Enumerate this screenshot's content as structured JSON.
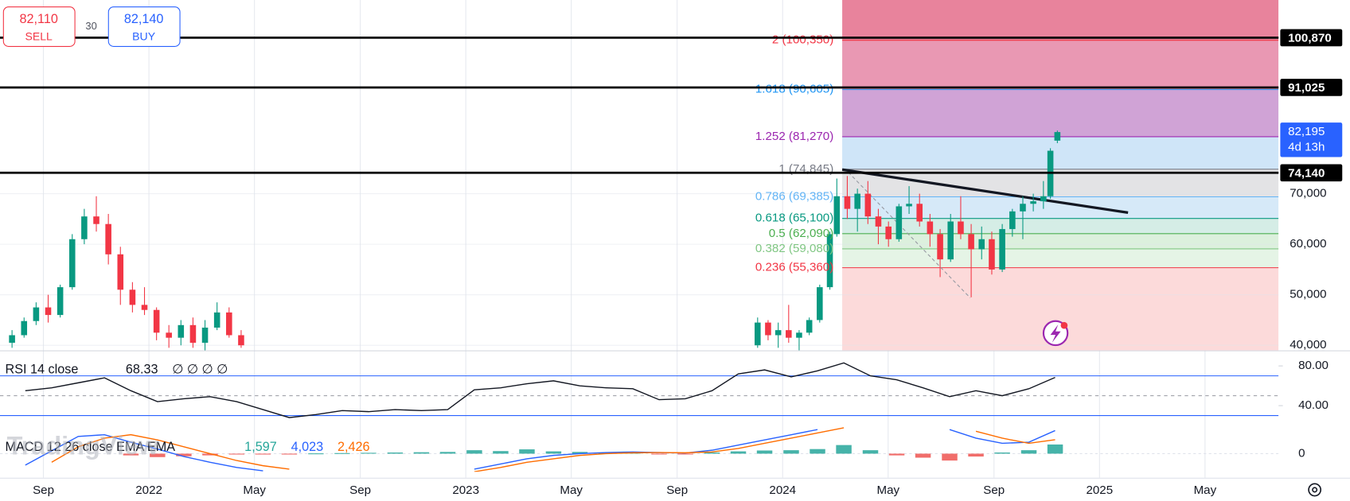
{
  "trade_panel": {
    "sell_price": "82,110",
    "sell_label": "SELL",
    "spread": "30",
    "buy_price": "82,140",
    "buy_label": "BUY"
  },
  "watermark": "TradingView",
  "chart_data": [
    {
      "type": "candlestick",
      "x": [
        2021.568,
        2021.606,
        2021.644,
        2021.682,
        2021.72,
        2021.758,
        2021.796,
        2021.834,
        2021.872,
        2021.91,
        2021.948,
        2021.986,
        2022.024,
        2022.063,
        2022.101,
        2022.139,
        2022.177,
        2022.215,
        2022.253,
        2022.291,
        2023.921,
        2023.954,
        2023.986,
        2024.019,
        2024.052,
        2024.084,
        2024.117,
        2024.149,
        2024.171,
        2024.204,
        2024.236,
        2024.269,
        2024.302,
        2024.334,
        2024.367,
        2024.399,
        2024.432,
        2024.465,
        2024.497,
        2024.53,
        2024.562,
        2024.595,
        2024.628,
        2024.66,
        2024.693,
        2024.725,
        2024.758,
        2024.791,
        2024.823,
        2024.845,
        2024.867
      ],
      "open": [
        40500,
        42000,
        44800,
        47500,
        46000,
        51500,
        61000,
        65500,
        64000,
        58000,
        51000,
        48000,
        47000,
        42500,
        41500,
        44000,
        40500,
        43500,
        46500,
        42000,
        40000,
        44500,
        42000,
        43000,
        41500,
        42500,
        45000,
        51500,
        62000,
        69500,
        67000,
        70000,
        65500,
        63500,
        61000,
        67500,
        68000,
        64500,
        62000,
        57000,
        64500,
        62000,
        59000,
        61000,
        55000,
        63000,
        66500,
        68000,
        68500,
        69500,
        80500
      ],
      "high": [
        43000,
        45500,
        48500,
        50000,
        52000,
        62000,
        67000,
        69500,
        66000,
        59500,
        52500,
        51500,
        47500,
        44000,
        45000,
        45500,
        45000,
        48500,
        47500,
        43000,
        45500,
        45000,
        44500,
        48000,
        43000,
        45500,
        52000,
        62500,
        73000,
        73500,
        71000,
        72500,
        67000,
        64500,
        68000,
        71500,
        70000,
        66000,
        63000,
        66000,
        69500,
        64000,
        63500,
        62500,
        64000,
        67000,
        69500,
        70000,
        72500,
        79000,
        82500
      ],
      "low": [
        39500,
        41500,
        44000,
        44500,
        45500,
        51000,
        60000,
        62500,
        56000,
        48000,
        46500,
        46000,
        41000,
        39500,
        40000,
        39500,
        39000,
        43000,
        41500,
        39500,
        39500,
        41000,
        39500,
        40500,
        39000,
        42000,
        44500,
        51000,
        61500,
        65000,
        62500,
        64000,
        60000,
        59500,
        60500,
        66000,
        63500,
        59500,
        53500,
        56500,
        61000,
        49500,
        57000,
        54000,
        54500,
        61500,
        61000,
        66500,
        67000,
        69000,
        80000
      ],
      "close": [
        42000,
        44800,
        47500,
        46000,
        51500,
        61000,
        65500,
        64000,
        58000,
        51000,
        48000,
        47000,
        42500,
        41500,
        44000,
        40500,
        43500,
        46500,
        42000,
        40000,
        44500,
        42000,
        43000,
        41500,
        42500,
        45000,
        51500,
        62000,
        69500,
        67000,
        70000,
        65500,
        63500,
        61000,
        67500,
        68000,
        64500,
        62000,
        57000,
        64500,
        62000,
        59000,
        61000,
        55000,
        63000,
        66500,
        68000,
        68500,
        69500,
        78500,
        82195
      ],
      "up_color": "#089981",
      "down_color": "#f23645",
      "xlim": [
        2021.53,
        2025.565
      ],
      "xticks": [
        {
          "value": 2021.667,
          "label": "Sep"
        },
        2022,
        {
          "value": 2022.333,
          "label": "May"
        },
        {
          "value": 2022.667,
          "label": "Sep"
        },
        2023,
        {
          "value": 2023.333,
          "label": "May"
        },
        {
          "value": 2023.667,
          "label": "Sep"
        },
        2024,
        {
          "value": 2024.333,
          "label": "May"
        },
        {
          "value": 2024.667,
          "label": "Sep"
        },
        2025,
        {
          "value": 2025.333,
          "label": "May"
        }
      ],
      "ylim": [
        39000,
        108330
      ],
      "yticks": [
        {
          "value": 40000,
          "label": "40,000"
        },
        {
          "value": 50000,
          "label": "50,000"
        },
        {
          "value": 60000,
          "label": "60,000"
        },
        {
          "value": 70000,
          "label": "70,000"
        }
      ],
      "grid": true,
      "price_lines": [
        {
          "value": 100870,
          "label": "100,870"
        },
        {
          "value": 91025,
          "label": "91,025"
        },
        {
          "value": 74140,
          "label": "74,140"
        }
      ],
      "price_line_color": "#000000",
      "last_price": {
        "value": 82195,
        "label": "82,195",
        "countdown": "4d 13h",
        "color": "#2962ff"
      },
      "fibonacci": {
        "x_start": 2024.188,
        "top_fill": "#e8839c",
        "levels": [
          {
            "value": 100350,
            "label": "2 (100,350)",
            "color": "#f23645",
            "fill": "#e998b3"
          },
          {
            "value": 90605,
            "label": "1.618 (90,605)",
            "color": "#2196f3",
            "fill": "#d0a3d6"
          },
          {
            "value": 81270,
            "label": "1.252 (81,270)",
            "color": "#9c27b0",
            "fill": "#cfe5f8"
          },
          {
            "value": 74845,
            "label": "1 (74,845)",
            "color": "#787b86",
            "fill": "#e3e3e5"
          },
          {
            "value": 69385,
            "label": "0.786 (69,385)",
            "color": "#64b5f6",
            "fill": "#d6e9f8"
          },
          {
            "value": 65100,
            "label": "0.618 (65,100)",
            "color": "#089981",
            "fill": "#d5ede6"
          },
          {
            "value": 62090,
            "label": "0.5 (62,090)",
            "color": "#4caf50",
            "fill": "#dcf0dd"
          },
          {
            "value": 59080,
            "label": "0.382 (59,080)",
            "color": "#81c784",
            "fill": "#e5f4e6"
          },
          {
            "value": 55360,
            "label": "0.236 (55,360)",
            "color": "#f23645",
            "fill": "#fcdada"
          }
        ]
      },
      "trend_lines": [
        {
          "x": [
            2024.188,
            2025.09
          ],
          "y": [
            74770,
            66250
          ],
          "color": "#131722",
          "dashed": false
        },
        {
          "x": [
            2024.207,
            2024.592
          ],
          "y": [
            74260,
            49390
          ],
          "color": "#9598a1",
          "dashed": true
        }
      ]
    },
    {
      "type": "line",
      "title": "RSI 14 close",
      "legend_values": [
        "68.33",
        "∅ ∅ ∅ ∅"
      ],
      "x": [
        2021.61,
        2021.693,
        2021.777,
        2021.86,
        2021.943,
        2022.027,
        2022.11,
        2022.193,
        2022.277,
        2022.36,
        2022.443,
        2022.527,
        2022.61,
        2022.693,
        2022.777,
        2022.86,
        2022.943,
        2023.027,
        2023.11,
        2023.193,
        2023.277,
        2023.36,
        2023.443,
        2023.527,
        2023.61,
        2023.693,
        2023.777,
        2023.86,
        2023.943,
        2024.027,
        2024.11,
        2024.193,
        2024.277,
        2024.36,
        2024.443,
        2024.527,
        2024.61,
        2024.693,
        2024.777,
        2024.86
      ],
      "values": [
        55,
        58,
        63,
        68,
        55,
        44,
        47,
        49,
        44,
        36,
        28,
        31,
        35,
        34,
        36,
        35,
        36,
        56,
        58,
        62,
        65,
        60,
        58,
        57,
        46,
        47,
        55,
        72,
        76,
        69,
        75,
        83,
        70,
        66,
        58,
        49,
        55,
        50,
        57,
        68.33
      ],
      "color": "#131722",
      "ylim": [
        19.4,
        94.8
      ],
      "yticks": [
        {
          "value": 80,
          "label": "80.00"
        },
        {
          "value": 40,
          "label": "40.00"
        }
      ],
      "band": [
        70,
        30
      ],
      "band_color": "#2962ff",
      "midline": 50
    },
    {
      "type": "macd",
      "title": "MACD 12 26 close EMA EMA",
      "legend_values": [
        "1,597",
        "4,023",
        "2,426"
      ],
      "x": [
        2021.61,
        2021.693,
        2021.777,
        2021.86,
        2021.943,
        2022.027,
        2022.11,
        2022.193,
        2022.277,
        2022.36,
        2022.443,
        2022.527,
        2022.61,
        2022.693,
        2022.777,
        2022.86,
        2022.943,
        2023.027,
        2023.11,
        2023.193,
        2023.277,
        2023.36,
        2023.443,
        2023.527,
        2023.61,
        2023.693,
        2023.777,
        2023.86,
        2023.943,
        2024.027,
        2024.11,
        2024.193,
        2024.277,
        2024.36,
        2024.443,
        2024.527,
        2024.61,
        2024.693,
        2024.777,
        2024.86
      ],
      "histogram": {
        "values": [
          null,
          null,
          null,
          null,
          -300,
          -600,
          -450,
          -300,
          -150,
          -100,
          -50,
          50,
          100,
          150,
          200,
          250,
          300,
          600,
          450,
          750,
          400,
          300,
          200,
          150,
          -150,
          -100,
          200,
          400,
          550,
          600,
          800,
          1500,
          600,
          -300,
          -700,
          -1200,
          -500,
          200,
          600,
          1597
        ],
        "up_color": "#26a69a",
        "down_color": "#ef5350"
      },
      "series": [
        {
          "values": [
            -2000,
            500,
            3000,
            3300,
            2000,
            800,
            -500,
            -1500,
            -2400,
            -3000,
            null,
            null,
            null,
            null,
            null,
            null,
            null,
            -2700,
            -1800,
            -900,
            -300,
            0,
            200,
            300,
            200,
            100,
            600,
            1500,
            2400,
            3300,
            4200,
            null,
            null,
            null,
            null,
            4200,
            2700,
            1800,
            2000,
            4023
          ],
          "color": "#2962ff"
        },
        {
          "values": [
            null,
            -1500,
            1200,
            2700,
            3300,
            2400,
            1200,
            0,
            -1200,
            -2100,
            -2700,
            null,
            null,
            null,
            null,
            null,
            null,
            -3150,
            -2400,
            -1500,
            -900,
            -300,
            0,
            150,
            200,
            150,
            300,
            900,
            1800,
            2700,
            3600,
            4500,
            null,
            null,
            null,
            null,
            3900,
            2700,
            1800,
            2426
          ],
          "color": "#ff6d00"
        }
      ],
      "ylim": [
        -3150,
        4800
      ],
      "yticks": [
        0
      ]
    }
  ]
}
